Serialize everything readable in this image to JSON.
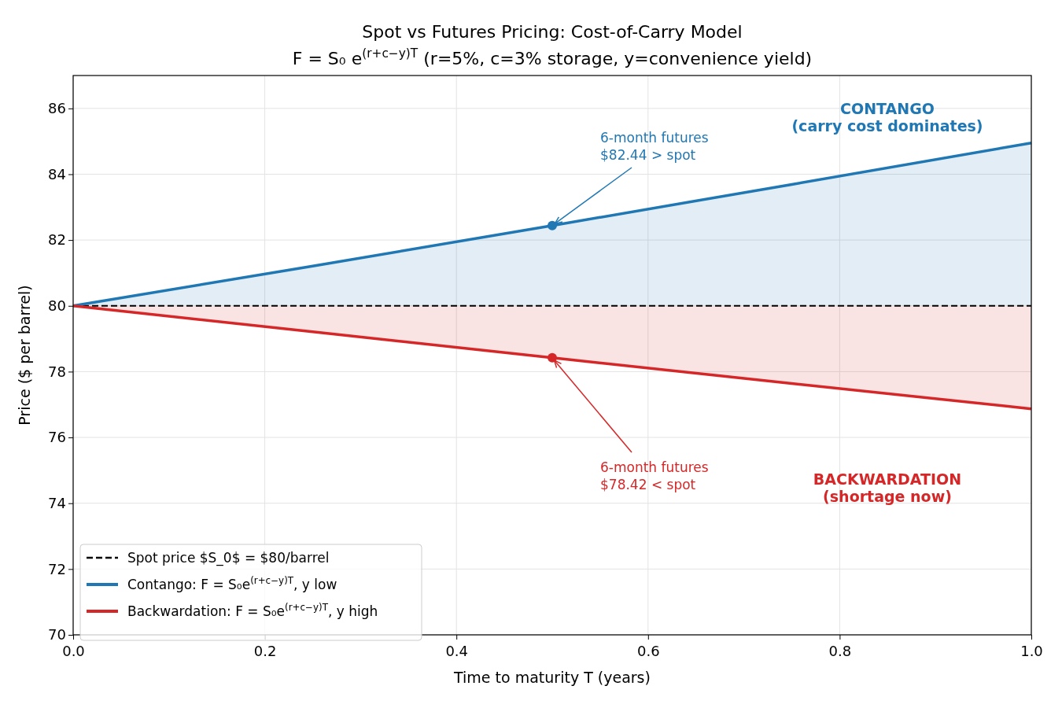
{
  "chart_data": {
    "type": "line",
    "title": "Spot vs Futures Pricing: Cost-of-Carry Model",
    "subtitle": "F = S₀ e$^{(r+c−y)T}$   (r=5%, c=3% storage, y=convenience yield)",
    "xlabel": "Time to maturity T (years)",
    "ylabel": "Price ($ per barrel)",
    "x": [
      0,
      0.25,
      0.5,
      0.75,
      1
    ],
    "series": [
      {
        "name": "Spot price $S_0$ = $80/barrel",
        "color": "#000000",
        "values": [
          80,
          80,
          80,
          80,
          80
        ],
        "line_style": "dashed"
      },
      {
        "name": "Contango: F = S₀e$^{(r+c−y)T}$,  y low",
        "color": "#1f77b4",
        "values": [
          80,
          81.21,
          82.44,
          83.69,
          84.95
        ],
        "lower": [
          80,
          80,
          80,
          80,
          80
        ],
        "upper": [
          80,
          81.21,
          82.44,
          83.69,
          84.95
        ],
        "line_style": "solid"
      },
      {
        "name": "Backwardation: F = S₀e$^{(r+c−y)T}$,  y high",
        "color": "#d62728",
        "values": [
          80,
          79.21,
          78.42,
          77.64,
          76.87
        ],
        "lower": [
          80,
          79.21,
          78.42,
          77.64,
          76.87
        ],
        "upper": [
          80,
          80,
          80,
          80,
          80
        ],
        "line_style": "solid"
      },
      {
        "type": "scatter",
        "x": [
          0.5
        ],
        "values": [
          82.44
        ],
        "color": "#1f77b4",
        "marker": "circle"
      },
      {
        "type": "scatter",
        "x": [
          0.5
        ],
        "values": [
          78.42
        ],
        "color": "#d62728",
        "marker": "circle"
      }
    ],
    "annotations": [
      {
        "text": "6-month futures\n$82.44 > spot",
        "x": 0.5,
        "y": 82.44
      },
      {
        "text": "6-month futures\n$78.42 < spot",
        "x": 0.5,
        "y": 78.42
      },
      "CONTANGO\n(carry cost dominates)",
      "BACKWARDATION\n(shortage now)"
    ],
    "xlim": [
      0,
      1
    ],
    "ylim": [
      70,
      87
    ],
    "xticks": [
      {
        "value": 0,
        "label": "0.0"
      },
      {
        "value": 0.2,
        "label": "0.2"
      },
      {
        "value": 0.4,
        "label": "0.4"
      },
      {
        "value": 0.6,
        "label": "0.6"
      },
      {
        "value": 0.8,
        "label": "0.8"
      },
      {
        "value": 1,
        "label": "1.0"
      }
    ],
    "yticks": [
      70,
      72,
      74,
      76,
      78,
      80,
      82,
      84,
      86
    ],
    "grid": true,
    "legend": "bottom left",
    "marker": "none"
  }
}
